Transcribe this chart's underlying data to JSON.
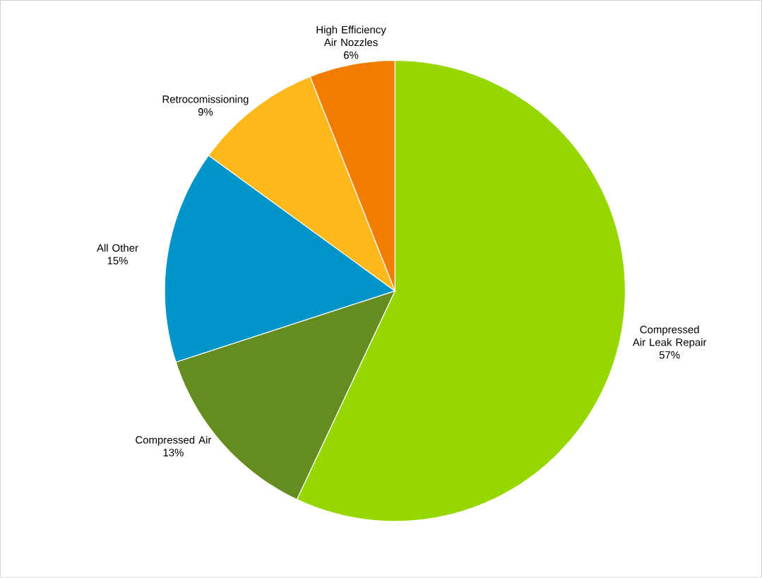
{
  "chart_data": {
    "type": "pie",
    "categories": [
      "Compressed Air Leak Repair",
      "Compressed Air",
      "All Other",
      "Retrocomissioning",
      "High Efficiency Air Nozzles"
    ],
    "values": [
      57,
      13,
      15,
      9,
      6
    ],
    "colors": [
      "#97d700",
      "#648c1e",
      "#0094c8",
      "#ffb81c",
      "#f07d00"
    ],
    "value_labels": [
      "57%",
      "13%",
      "15%",
      "9%",
      "6%"
    ]
  }
}
